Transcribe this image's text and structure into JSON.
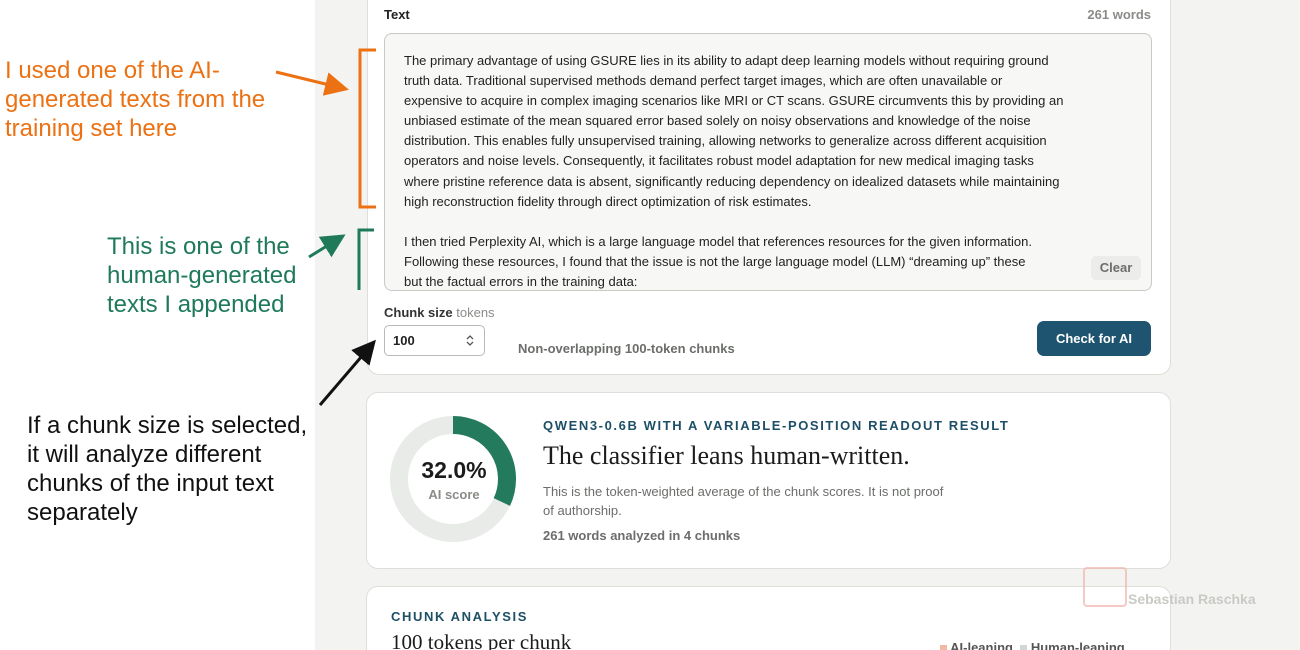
{
  "annotations": [
    {
      "lines": [
        "I used one of the AI-",
        "generated texts from the",
        "training set here"
      ]
    },
    {
      "lines": [
        "This is one of the",
        "human-generated",
        "texts I appended"
      ]
    },
    {
      "lines": [
        "If a chunk size is selected,",
        "it will analyze different",
        "chunks of the input text",
        "separately"
      ]
    }
  ],
  "input": {
    "label": "Text",
    "word_count": "261 words",
    "paragraphs": [
      [
        "The primary advantage of using GSURE lies in its ability to adapt deep learning models without requiring ground",
        "truth data. Traditional supervised methods demand perfect target images, which are often unavailable or",
        "expensive to acquire in complex imaging scenarios like MRI or CT scans. GSURE circumvents this by providing an",
        "unbiased estimate of the mean squared error based solely on noisy observations and knowledge of the noise",
        "distribution. This enables fully unsupervised training, allowing networks to generalize across different acquisition",
        "operators and noise levels. Consequently, it facilitates robust model adaptation for new medical imaging tasks",
        "where pristine reference data is absent, significantly reducing dependency on idealized datasets while maintaining",
        "high reconstruction fidelity through direct optimization of risk estimates."
      ],
      [
        "I then tried Perplexity AI, which is a large language model that references resources for the given information.",
        "Following these resources, I found that the issue is not the large language model (LLM) “dreaming up” these",
        "but the factual errors in the training data:"
      ]
    ],
    "clear_button": "Clear",
    "chunk_size_label": "Chunk size",
    "chunk_size_unit": "tokens",
    "chunk_size_value": "100",
    "chunk_note": "Non-overlapping 100-token chunks",
    "submit_button": "Check for AI"
  },
  "result": {
    "eyebrow": "QWEN3-0.6B WITH A VARIABLE-POSITION READOUT RESULT",
    "headline": "The classifier leans human-written.",
    "description": [
      "This is the token-weighted average of the chunk scores. It is not proof",
      "of authorship."
    ],
    "summary": "261 words analyzed in 4 chunks",
    "score": {
      "value": 32.0,
      "label": "32.0%"
    },
    "score_caption": "AI score"
  },
  "chunks": {
    "eyebrow": "CHUNK ANALYSIS",
    "heading": "100 tokens per chunk",
    "legend": [
      "AI-leaning",
      "Human-leaning"
    ]
  },
  "watermark": "Sebastian Raschka"
}
